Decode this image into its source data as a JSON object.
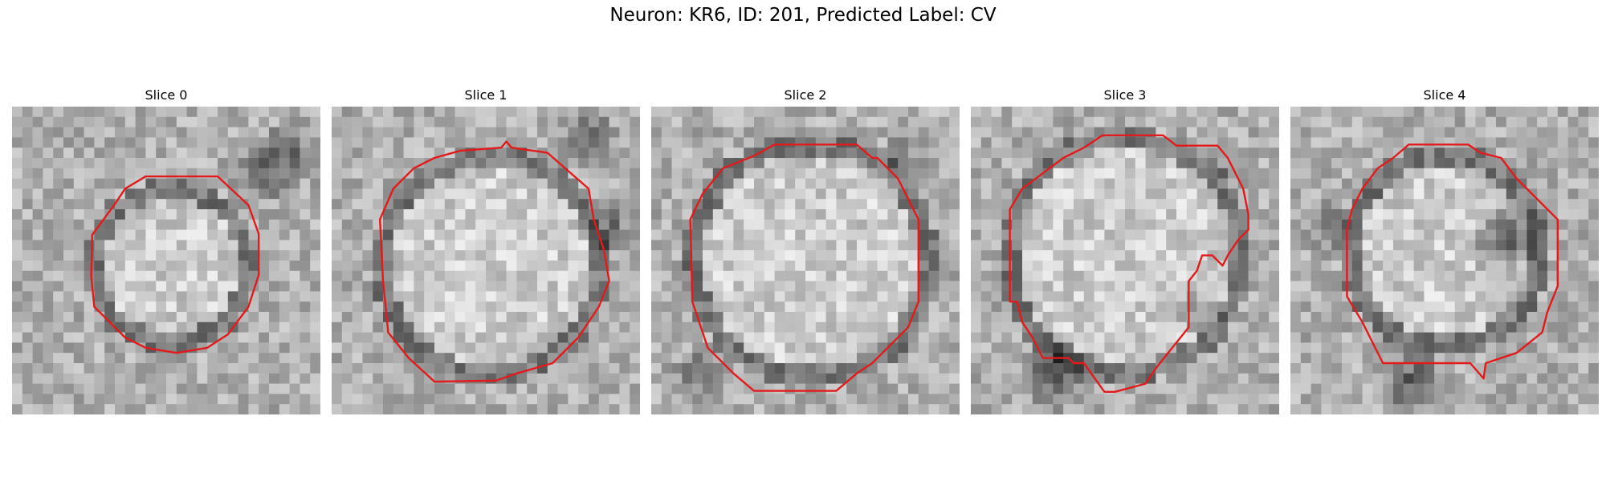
{
  "figure": {
    "title": "Neuron: KR6, ID: 201, Predicted Label: CV"
  },
  "panels": [
    {
      "title": "Slice 0"
    },
    {
      "title": "Slice 1"
    },
    {
      "title": "Slice 2"
    },
    {
      "title": "Slice 3"
    },
    {
      "title": "Slice 4"
    }
  ],
  "colors": {
    "outline": "#e31a1c",
    "colormap": "grayscale"
  }
}
